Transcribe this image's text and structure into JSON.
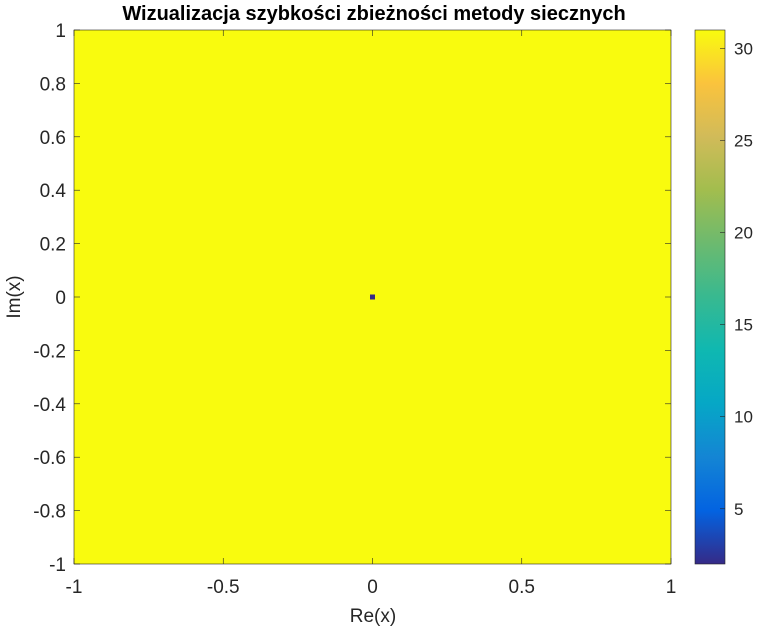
{
  "chart_data": {
    "type": "heatmap",
    "title": "Wizualizacja szybkości zbieżności metody siecznych",
    "xlabel": "Re(x)",
    "ylabel": "Im(x)",
    "xlim": [
      -1,
      1
    ],
    "ylim": [
      -1,
      1
    ],
    "x_ticks": [
      -1,
      -0.5,
      0,
      0.5,
      1
    ],
    "x_tick_labels": [
      "-1",
      "-0.5",
      "0",
      "0.5",
      "1"
    ],
    "y_ticks": [
      1,
      0.8,
      0.6,
      0.4,
      0.2,
      0,
      -0.2,
      -0.4,
      -0.6,
      -0.8,
      -1
    ],
    "y_tick_labels": [
      "1",
      "0.8",
      "0.6",
      "0.4",
      "0.2",
      "0",
      "-0.2",
      "-0.4",
      "-0.6",
      "-0.8",
      "-1"
    ],
    "background_value": 31,
    "cells": [
      {
        "re": 0,
        "im": 0,
        "value": 2
      }
    ],
    "colormap": "parula",
    "clim": [
      2,
      31
    ],
    "colorbar": {
      "ticks": [
        30,
        25,
        20,
        15,
        10,
        5
      ],
      "tick_labels": [
        "30",
        "25",
        "20",
        "15",
        "10",
        "5"
      ],
      "location": "right"
    },
    "grid": false
  }
}
